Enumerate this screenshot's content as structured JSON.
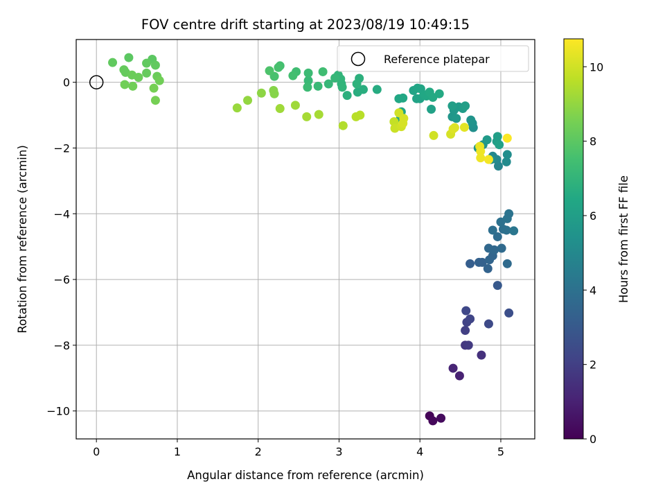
{
  "chart_data": {
    "type": "scatter",
    "title": "FOV centre drift starting at 2023/08/19 10:49:15",
    "xlabel": "Angular distance from reference (arcmin)",
    "ylabel": "Rotation from reference (arcmin)",
    "xlim": [
      -0.25,
      5.42
    ],
    "ylim": [
      -10.85,
      1.3
    ],
    "x_ticks": [
      0,
      1,
      2,
      3,
      4,
      5
    ],
    "y_ticks": [
      0,
      -2,
      -4,
      -6,
      -8,
      -10
    ],
    "x_tick_labels": [
      "0",
      "1",
      "2",
      "3",
      "4",
      "5"
    ],
    "y_tick_labels": [
      "0",
      "−2",
      "−4",
      "−6",
      "−8",
      "−10"
    ],
    "grid": true,
    "colormap": "viridis",
    "colorbar": {
      "label": "Hours from first FF file",
      "range": [
        0,
        10.75
      ],
      "ticks": [
        0,
        2,
        4,
        6,
        8,
        10
      ],
      "tick_labels": [
        "0",
        "2",
        "4",
        "6",
        "8",
        "10"
      ]
    },
    "legend": {
      "position": "top-right",
      "entries": [
        {
          "label": "Reference platepar",
          "marker": "open-circle"
        }
      ]
    },
    "reference_point": {
      "x": 0,
      "y": 0
    },
    "points": [
      {
        "x": 4.12,
        "y": -10.15,
        "h": 0.1
      },
      {
        "x": 4.16,
        "y": -10.3,
        "h": 0.2
      },
      {
        "x": 4.26,
        "y": -10.22,
        "h": 0.3
      },
      {
        "x": 4.49,
        "y": -8.93,
        "h": 1.0
      },
      {
        "x": 4.41,
        "y": -8.7,
        "h": 1.1
      },
      {
        "x": 4.76,
        "y": -8.3,
        "h": 1.5
      },
      {
        "x": 4.56,
        "y": -8.0,
        "h": 1.7
      },
      {
        "x": 4.6,
        "y": -8.0,
        "h": 1.8
      },
      {
        "x": 4.56,
        "y": -7.55,
        "h": 2.0
      },
      {
        "x": 4.58,
        "y": -7.3,
        "h": 2.1
      },
      {
        "x": 4.62,
        "y": -7.2,
        "h": 2.2
      },
      {
        "x": 4.57,
        "y": -6.95,
        "h": 2.3
      },
      {
        "x": 4.85,
        "y": -7.35,
        "h": 2.4
      },
      {
        "x": 5.1,
        "y": -7.02,
        "h": 2.6
      },
      {
        "x": 4.96,
        "y": -6.18,
        "h": 3.0
      },
      {
        "x": 4.62,
        "y": -5.52,
        "h": 3.2
      },
      {
        "x": 4.73,
        "y": -5.48,
        "h": 3.3
      },
      {
        "x": 4.77,
        "y": -5.48,
        "h": 3.3
      },
      {
        "x": 4.84,
        "y": -5.67,
        "h": 3.4
      },
      {
        "x": 4.86,
        "y": -5.4,
        "h": 3.5
      },
      {
        "x": 4.9,
        "y": -5.28,
        "h": 3.5
      },
      {
        "x": 4.85,
        "y": -5.05,
        "h": 3.6
      },
      {
        "x": 4.92,
        "y": -5.1,
        "h": 3.6
      },
      {
        "x": 5.01,
        "y": -5.05,
        "h": 3.7
      },
      {
        "x": 5.08,
        "y": -5.52,
        "h": 3.7
      },
      {
        "x": 4.96,
        "y": -4.7,
        "h": 3.8
      },
      {
        "x": 4.9,
        "y": -4.5,
        "h": 3.9
      },
      {
        "x": 5.03,
        "y": -4.47,
        "h": 3.9
      },
      {
        "x": 5.07,
        "y": -4.5,
        "h": 4.0
      },
      {
        "x": 5.0,
        "y": -4.25,
        "h": 4.0
      },
      {
        "x": 5.08,
        "y": -4.15,
        "h": 4.1
      },
      {
        "x": 5.1,
        "y": -4.0,
        "h": 4.1
      },
      {
        "x": 5.16,
        "y": -4.52,
        "h": 4.2
      },
      {
        "x": 4.97,
        "y": -2.55,
        "h": 4.8
      },
      {
        "x": 4.9,
        "y": -2.25,
        "h": 5.0
      },
      {
        "x": 4.95,
        "y": -2.35,
        "h": 5.0
      },
      {
        "x": 5.07,
        "y": -2.42,
        "h": 5.1
      },
      {
        "x": 5.08,
        "y": -2.2,
        "h": 5.2
      },
      {
        "x": 4.88,
        "y": -2.35,
        "h": 5.3
      },
      {
        "x": 4.66,
        "y": -1.38,
        "h": 5.3
      },
      {
        "x": 4.65,
        "y": -1.25,
        "h": 5.4
      },
      {
        "x": 4.63,
        "y": -1.15,
        "h": 5.5
      },
      {
        "x": 4.78,
        "y": -1.9,
        "h": 5.5
      },
      {
        "x": 4.72,
        "y": -2.0,
        "h": 5.6
      },
      {
        "x": 4.83,
        "y": -1.75,
        "h": 5.8
      },
      {
        "x": 4.96,
        "y": -1.65,
        "h": 6.0
      },
      {
        "x": 4.95,
        "y": -1.8,
        "h": 6.0
      },
      {
        "x": 4.98,
        "y": -1.9,
        "h": 6.1
      },
      {
        "x": 4.4,
        "y": -1.05,
        "h": 5.6
      },
      {
        "x": 4.42,
        "y": -0.85,
        "h": 5.7
      },
      {
        "x": 4.45,
        "y": -1.1,
        "h": 5.7
      },
      {
        "x": 4.48,
        "y": -0.75,
        "h": 5.8
      },
      {
        "x": 4.53,
        "y": -0.8,
        "h": 5.9
      },
      {
        "x": 4.56,
        "y": -0.72,
        "h": 6.0
      },
      {
        "x": 4.4,
        "y": -0.72,
        "h": 6.0
      },
      {
        "x": 4.14,
        "y": -0.82,
        "h": 6.1
      },
      {
        "x": 3.92,
        "y": -0.25,
        "h": 6.2
      },
      {
        "x": 3.97,
        "y": -0.18,
        "h": 6.3
      },
      {
        "x": 4.01,
        "y": -0.2,
        "h": 6.3
      },
      {
        "x": 4.0,
        "y": -0.5,
        "h": 6.2
      },
      {
        "x": 4.05,
        "y": -0.38,
        "h": 6.4
      },
      {
        "x": 4.08,
        "y": -0.42,
        "h": 6.4
      },
      {
        "x": 4.12,
        "y": -0.3,
        "h": 6.5
      },
      {
        "x": 4.16,
        "y": -0.46,
        "h": 6.5
      },
      {
        "x": 4.24,
        "y": -0.35,
        "h": 6.5
      },
      {
        "x": 3.96,
        "y": -0.5,
        "h": 6.2
      },
      {
        "x": 3.79,
        "y": -0.48,
        "h": 6.4
      },
      {
        "x": 3.74,
        "y": -0.5,
        "h": 6.4
      },
      {
        "x": 3.77,
        "y": -0.9,
        "h": 6.3
      },
      {
        "x": 3.76,
        "y": -1.1,
        "h": 6.3
      },
      {
        "x": 3.47,
        "y": -0.22,
        "h": 6.6
      },
      {
        "x": 3.3,
        "y": -0.22,
        "h": 6.7
      },
      {
        "x": 3.23,
        "y": -0.3,
        "h": 6.7
      },
      {
        "x": 3.25,
        "y": 0.12,
        "h": 6.8
      },
      {
        "x": 3.1,
        "y": -0.4,
        "h": 6.8
      },
      {
        "x": 3.22,
        "y": -0.05,
        "h": 6.9
      },
      {
        "x": 3.03,
        "y": -0.05,
        "h": 6.9
      },
      {
        "x": 3.02,
        "y": 0.1,
        "h": 7.0
      },
      {
        "x": 2.99,
        "y": 0.22,
        "h": 7.0
      },
      {
        "x": 3.04,
        "y": -0.15,
        "h": 7.0
      },
      {
        "x": 2.95,
        "y": 0.13,
        "h": 7.1
      },
      {
        "x": 2.87,
        "y": -0.05,
        "h": 7.1
      },
      {
        "x": 2.74,
        "y": -0.12,
        "h": 7.2
      },
      {
        "x": 2.62,
        "y": 0.05,
        "h": 7.2
      },
      {
        "x": 2.61,
        "y": -0.15,
        "h": 7.3
      },
      {
        "x": 2.62,
        "y": 0.28,
        "h": 7.3
      },
      {
        "x": 2.8,
        "y": 0.32,
        "h": 7.4
      },
      {
        "x": 2.47,
        "y": 0.32,
        "h": 7.4
      },
      {
        "x": 2.43,
        "y": 0.2,
        "h": 7.5
      },
      {
        "x": 2.27,
        "y": 0.5,
        "h": 7.5
      },
      {
        "x": 2.25,
        "y": 0.45,
        "h": 7.6
      },
      {
        "x": 2.2,
        "y": 0.18,
        "h": 7.6
      },
      {
        "x": 2.14,
        "y": 0.35,
        "h": 7.7
      },
      {
        "x": 0.4,
        "y": 0.75,
        "h": 8.0
      },
      {
        "x": 0.69,
        "y": 0.7,
        "h": 8.0
      },
      {
        "x": 0.2,
        "y": 0.6,
        "h": 8.1
      },
      {
        "x": 0.62,
        "y": 0.58,
        "h": 8.1
      },
      {
        "x": 0.73,
        "y": 0.52,
        "h": 8.1
      },
      {
        "x": 0.34,
        "y": 0.38,
        "h": 8.2
      },
      {
        "x": 0.36,
        "y": 0.3,
        "h": 8.2
      },
      {
        "x": 0.62,
        "y": 0.28,
        "h": 8.2
      },
      {
        "x": 0.44,
        "y": 0.22,
        "h": 8.3
      },
      {
        "x": 0.52,
        "y": 0.15,
        "h": 8.3
      },
      {
        "x": 0.75,
        "y": 0.18,
        "h": 8.3
      },
      {
        "x": 0.78,
        "y": 0.05,
        "h": 8.4
      },
      {
        "x": 0.35,
        "y": -0.07,
        "h": 8.4
      },
      {
        "x": 0.45,
        "y": -0.12,
        "h": 8.4
      },
      {
        "x": 0.71,
        "y": -0.18,
        "h": 8.5
      },
      {
        "x": 0.73,
        "y": -0.55,
        "h": 8.5
      },
      {
        "x": 2.19,
        "y": -0.25,
        "h": 8.8
      },
      {
        "x": 2.2,
        "y": -0.35,
        "h": 8.8
      },
      {
        "x": 2.04,
        "y": -0.33,
        "h": 8.9
      },
      {
        "x": 1.87,
        "y": -0.55,
        "h": 9.0
      },
      {
        "x": 1.74,
        "y": -0.78,
        "h": 9.1
      },
      {
        "x": 2.27,
        "y": -0.8,
        "h": 9.2
      },
      {
        "x": 2.46,
        "y": -0.7,
        "h": 9.2
      },
      {
        "x": 2.6,
        "y": -1.05,
        "h": 9.3
      },
      {
        "x": 2.75,
        "y": -0.98,
        "h": 9.3
      },
      {
        "x": 3.05,
        "y": -1.32,
        "h": 9.5
      },
      {
        "x": 3.21,
        "y": -1.05,
        "h": 9.6
      },
      {
        "x": 3.26,
        "y": -1.0,
        "h": 9.6
      },
      {
        "x": 3.68,
        "y": -1.2,
        "h": 9.8
      },
      {
        "x": 3.69,
        "y": -1.4,
        "h": 9.9
      },
      {
        "x": 3.74,
        "y": -0.93,
        "h": 10.0
      },
      {
        "x": 3.77,
        "y": -1.35,
        "h": 10.0
      },
      {
        "x": 3.79,
        "y": -1.25,
        "h": 10.1
      },
      {
        "x": 3.8,
        "y": -1.1,
        "h": 10.1
      },
      {
        "x": 4.17,
        "y": -1.62,
        "h": 10.0
      },
      {
        "x": 4.38,
        "y": -1.58,
        "h": 10.1
      },
      {
        "x": 4.41,
        "y": -1.42,
        "h": 10.2
      },
      {
        "x": 4.43,
        "y": -1.38,
        "h": 10.2
      },
      {
        "x": 4.55,
        "y": -1.37,
        "h": 10.3
      },
      {
        "x": 4.74,
        "y": -1.95,
        "h": 10.4
      },
      {
        "x": 4.75,
        "y": -2.1,
        "h": 10.5
      },
      {
        "x": 4.75,
        "y": -2.3,
        "h": 10.5
      },
      {
        "x": 4.85,
        "y": -2.35,
        "h": 10.6
      },
      {
        "x": 5.08,
        "y": -1.7,
        "h": 10.7
      }
    ]
  }
}
